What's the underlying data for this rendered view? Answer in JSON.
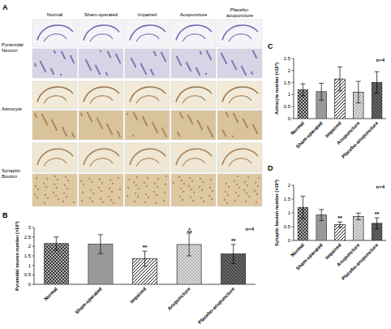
{
  "panel_a": {
    "panel_label": "A",
    "columns": [
      "Normal",
      "Sham-operated",
      "Impaired",
      "Acupuncture",
      "Placebo-acupuncture"
    ],
    "rows": [
      "Pyramidal Neuron",
      "Astrocyte",
      "Synaptic Bouton"
    ]
  },
  "chart_data": [
    {
      "type": "bar",
      "panel_label": "B",
      "y_label": "Pyramidal neuron number (×10⁵)",
      "sample_size_label": "n=4",
      "categories": [
        "Normal",
        "Sham-operated",
        "Impaired",
        "Acupuncture",
        "Placebo-acupuncture"
      ],
      "values": [
        2.15,
        2.12,
        1.35,
        2.1,
        1.6
      ],
      "errors": [
        0.35,
        0.5,
        0.4,
        0.6,
        0.5
      ],
      "annotations": [
        null,
        null,
        "**",
        "△",
        "**"
      ],
      "colors": [
        "#3a3a3a",
        "#6e6e6e",
        "#ffffff",
        "#d8d8d8",
        "#4a4a4a"
      ],
      "ylim": [
        0,
        3
      ],
      "yticks": [
        0,
        0.5,
        1,
        1.5,
        2,
        2.5,
        3
      ],
      "grid": false
    },
    {
      "type": "bar",
      "panel_label": "C",
      "y_label": "Astrocyte number (×10⁵)",
      "sample_size_label": "n=4",
      "categories": [
        "Normal",
        "Sham-operated",
        "Impaired",
        "Acupuncture",
        "Placebo-acupuncture"
      ],
      "values": [
        1.2,
        1.12,
        1.65,
        1.1,
        1.5
      ],
      "errors": [
        0.25,
        0.35,
        0.5,
        0.45,
        0.45
      ],
      "annotations": [
        null,
        null,
        null,
        null,
        null
      ],
      "colors": [
        "#3a3a3a",
        "#6e6e6e",
        "#ffffff",
        "#d8d8d8",
        "#4a4a4a"
      ],
      "ylim": [
        0,
        2.5
      ],
      "yticks": [
        0,
        0.5,
        1,
        1.5,
        2,
        2.5
      ],
      "grid": false
    },
    {
      "type": "bar",
      "panel_label": "D",
      "y_label": "Synaptic bouton number (×10⁸)",
      "sample_size_label": "n=4",
      "categories": [
        "Normal",
        "Sham-operated",
        "Impaired",
        "Acupuncture",
        "Placebo-acupuncture"
      ],
      "values": [
        1.2,
        0.92,
        0.57,
        0.87,
        0.62
      ],
      "errors": [
        0.4,
        0.2,
        0.1,
        0.12,
        0.2
      ],
      "annotations": [
        null,
        null,
        "**",
        null,
        "**"
      ],
      "colors": [
        "#3a3a3a",
        "#6e6e6e",
        "#ffffff",
        "#d8d8d8",
        "#4a4a4a"
      ],
      "ylim": [
        0,
        2
      ],
      "yticks": [
        0,
        0.5,
        1,
        1.5,
        2
      ],
      "grid": false
    }
  ]
}
